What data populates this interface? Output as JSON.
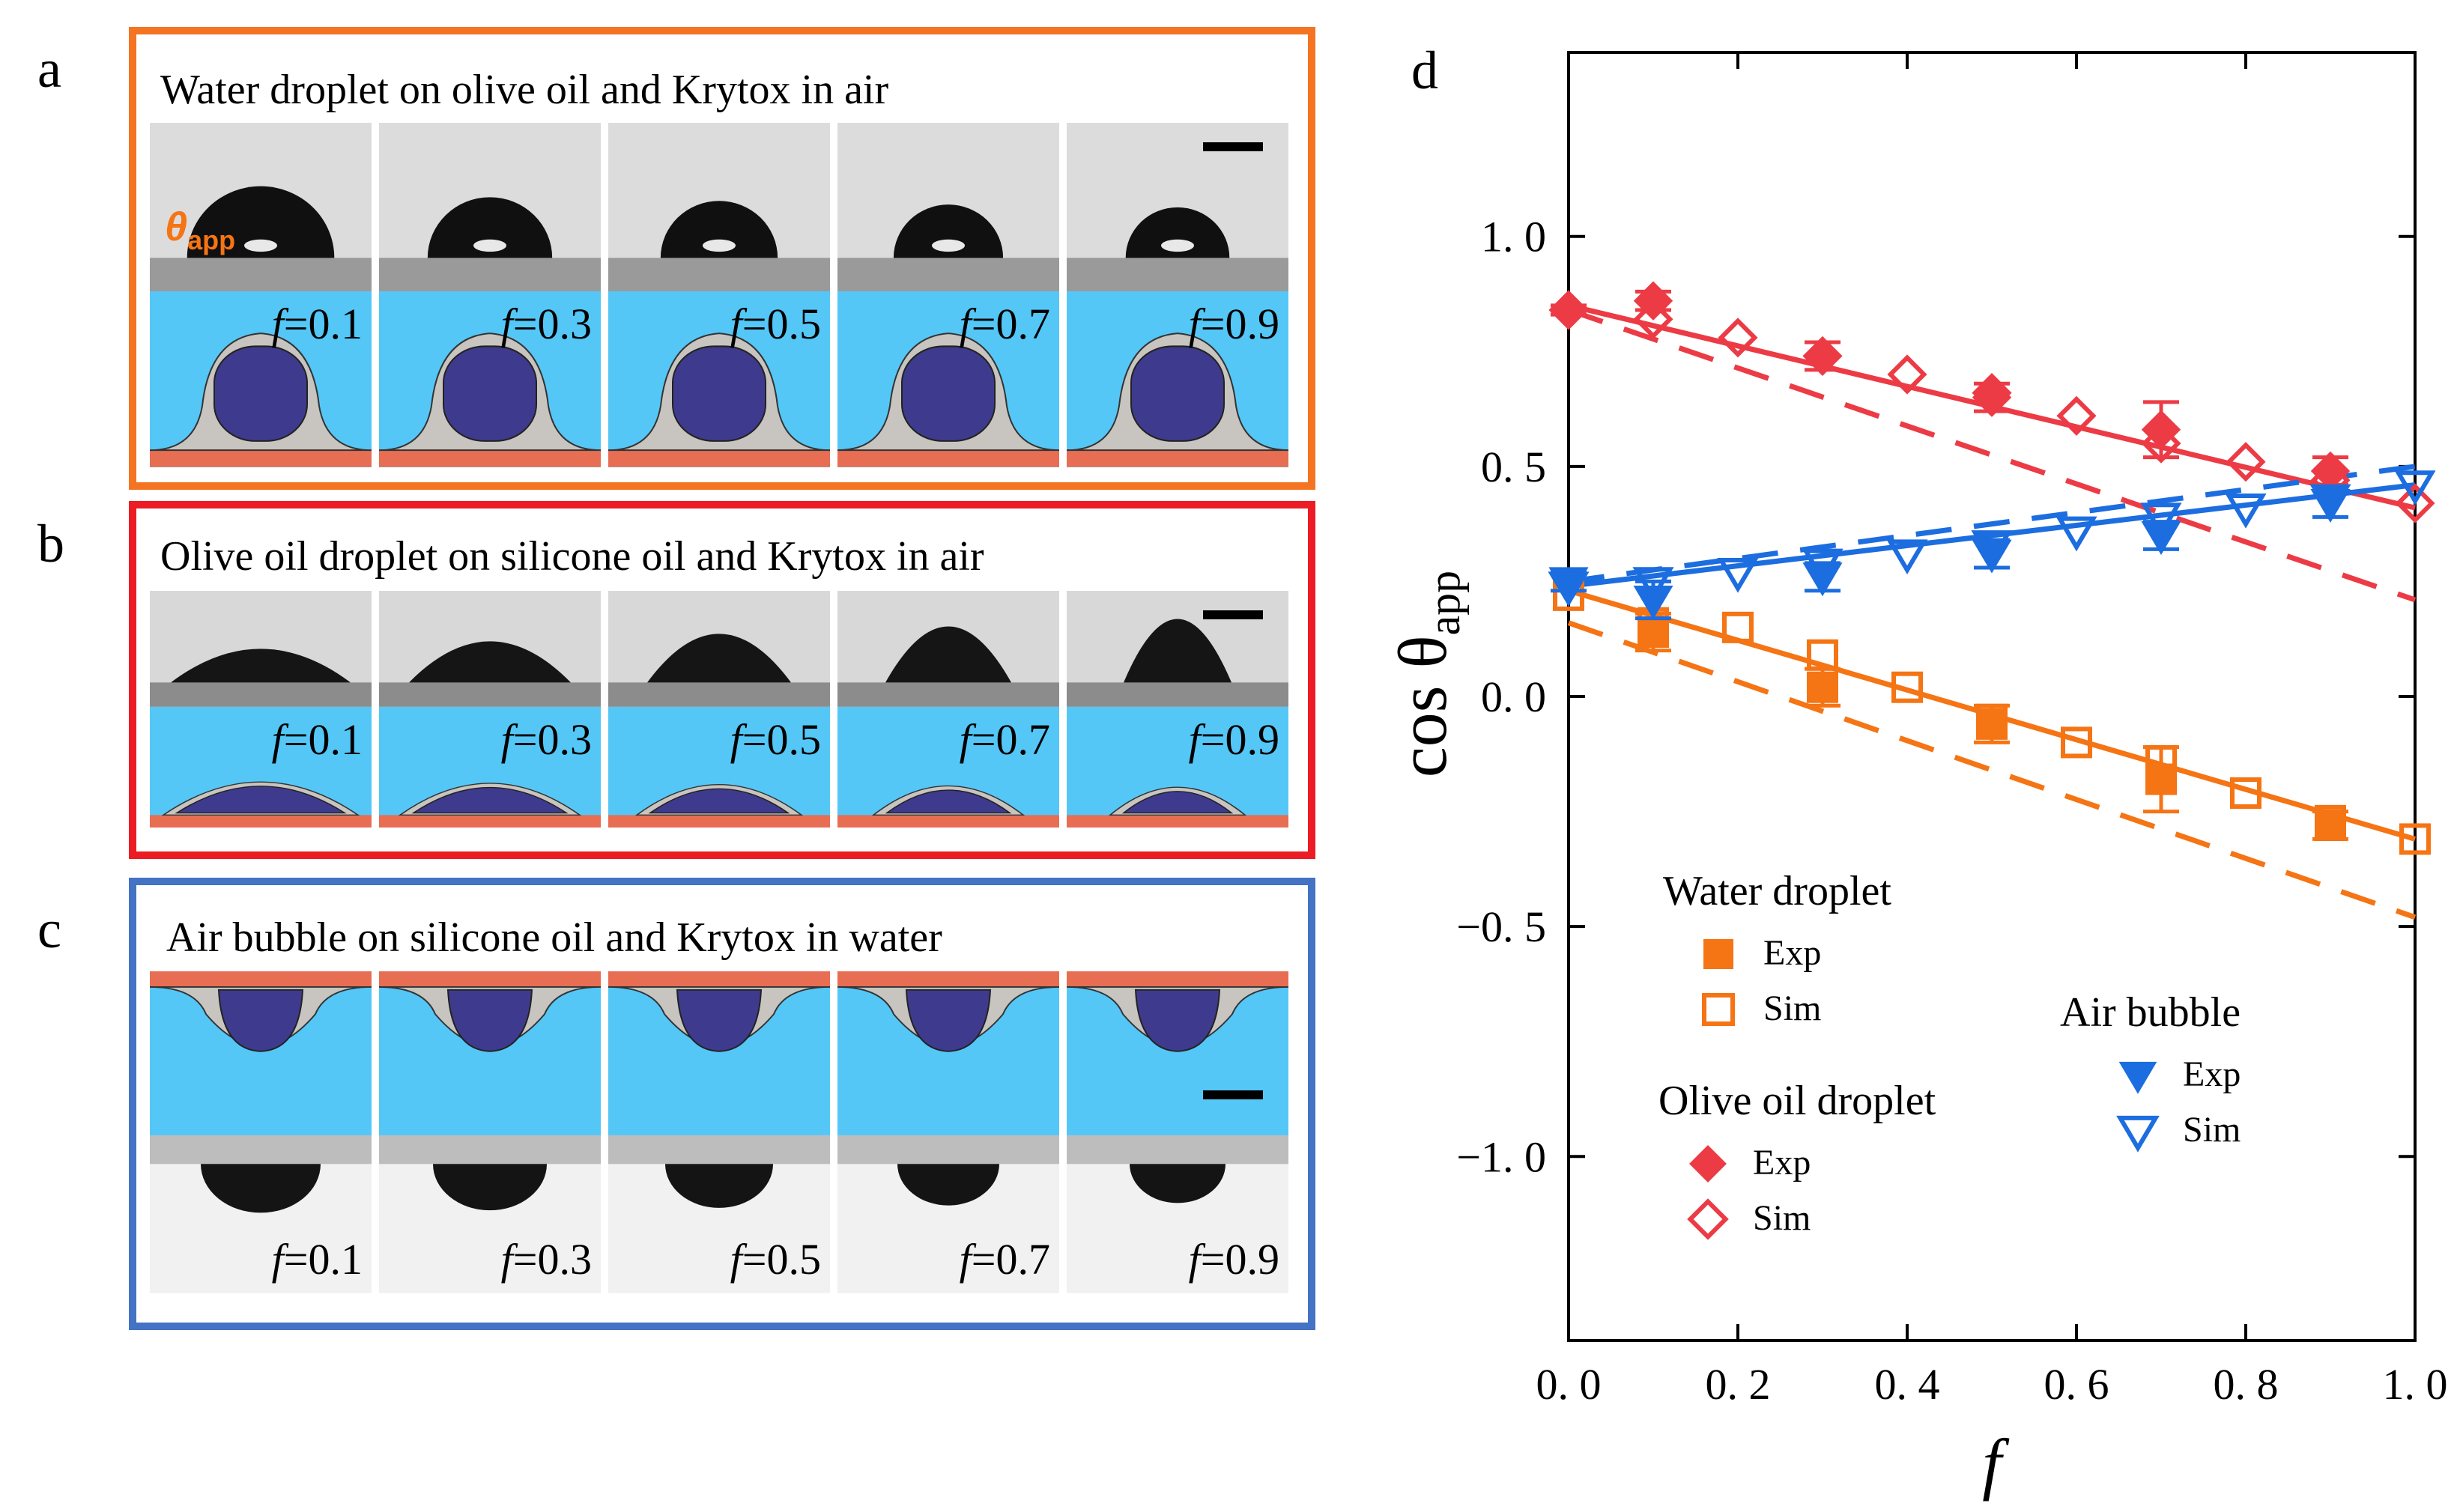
{
  "panels": {
    "a": {
      "label": "a",
      "title": "Water droplet on olive oil and Krytox in air",
      "border_color": "#f47421"
    },
    "b": {
      "label": "b",
      "title": "Olive oil droplet on silicone oil and Krytox in air",
      "border_color": "#ec1c24"
    },
    "c": {
      "label": "c",
      "title": "Air bubble on silicone oil and Krytox in water",
      "border_color": "#4472c4"
    }
  },
  "inset_symbol": "θ",
  "inset_subscript": "app",
  "f_symbol": "f",
  "frames": [
    "=0.1",
    "=0.3",
    "=0.5",
    "=0.7",
    "=0.9"
  ],
  "colors": {
    "water_droplet": "#f57414",
    "olive_oil": "#ec3b45",
    "air_bubble": "#1c6ddf",
    "schematic_bg": "#54c7f7",
    "schematic_fluid": "#e86e53",
    "schematic_core": "#3e3b8e"
  },
  "chart_data": {
    "type": "scatter",
    "panel_label": "d",
    "xlabel": "f",
    "ylabel": "cos θ",
    "ylabel_sub": "app",
    "xlim": [
      0.0,
      1.0
    ],
    "ylim": [
      -1.4,
      1.4
    ],
    "xticks": [
      0.0,
      0.2,
      0.4,
      0.6,
      0.8,
      1.0
    ],
    "xtick_labels": [
      "0. 0",
      "0. 2",
      "0. 4",
      "0. 6",
      "0. 8",
      "1. 0"
    ],
    "yticks": [
      1.0,
      0.5,
      0.0,
      -0.5,
      -1.0
    ],
    "ytick_labels": [
      "1. 0",
      "0. 5",
      "0. 0",
      "−0. 5",
      "−1. 0"
    ],
    "series": [
      {
        "group": "Water droplet",
        "name": "Exp",
        "color": "#f57414",
        "marker": "square-filled",
        "x": [
          0.1,
          0.3,
          0.5,
          0.7,
          0.9
        ],
        "y": [
          0.14,
          0.02,
          -0.06,
          -0.18,
          -0.28
        ],
        "err": [
          0.04,
          0.04,
          0.04,
          0.07,
          0.03
        ]
      },
      {
        "group": "Water droplet",
        "name": "Sim",
        "color": "#f57414",
        "marker": "square-open",
        "x": [
          0.0,
          0.1,
          0.2,
          0.3,
          0.4,
          0.5,
          0.6,
          0.7,
          0.8,
          0.9,
          1.0
        ],
        "y": [
          0.22,
          0.16,
          0.15,
          0.09,
          0.02,
          -0.05,
          -0.1,
          -0.14,
          -0.21,
          -0.27,
          -0.31
        ]
      },
      {
        "group": "Olive oil droplet",
        "name": "Exp",
        "color": "#ec3b45",
        "marker": "diamond-filled",
        "x": [
          0.0,
          0.1,
          0.3,
          0.5,
          0.7,
          0.9
        ],
        "y": [
          0.84,
          0.86,
          0.74,
          0.65,
          0.58,
          0.49
        ],
        "err": [
          0.01,
          0.02,
          0.03,
          0.03,
          0.06,
          0.03
        ]
      },
      {
        "group": "Olive oil droplet",
        "name": "Sim",
        "color": "#ec3b45",
        "marker": "diamond-open",
        "x": [
          0.0,
          0.1,
          0.2,
          0.3,
          0.4,
          0.5,
          0.6,
          0.7,
          0.8,
          0.9,
          1.0
        ],
        "y": [
          0.84,
          0.82,
          0.78,
          0.74,
          0.7,
          0.66,
          0.61,
          0.55,
          0.51,
          0.47,
          0.42
        ]
      },
      {
        "group": "Air bubble",
        "name": "Exp",
        "color": "#1c6ddf",
        "marker": "triangle-down-filled",
        "x": [
          0.0,
          0.1,
          0.3,
          0.5,
          0.7,
          0.9
        ],
        "y": [
          0.25,
          0.21,
          0.26,
          0.31,
          0.35,
          0.42
        ],
        "err": [
          0.02,
          0.04,
          0.03,
          0.03,
          0.03,
          0.03
        ]
      },
      {
        "group": "Air bubble",
        "name": "Sim",
        "color": "#1c6ddf",
        "marker": "triangle-down-open",
        "x": [
          0.0,
          0.1,
          0.2,
          0.3,
          0.4,
          0.5,
          0.6,
          0.7,
          0.8,
          0.9,
          1.0
        ],
        "y": [
          0.24,
          0.25,
          0.27,
          0.29,
          0.31,
          0.33,
          0.36,
          0.39,
          0.41,
          0.43,
          0.46
        ]
      }
    ],
    "fits": [
      {
        "color": "#f57414",
        "style": "solid",
        "x": [
          0.0,
          1.0
        ],
        "y": [
          0.23,
          -0.31
        ]
      },
      {
        "color": "#f57414",
        "style": "dashed",
        "x": [
          0.0,
          1.0
        ],
        "y": [
          0.16,
          -0.48
        ]
      },
      {
        "color": "#ec3b45",
        "style": "solid",
        "x": [
          0.0,
          1.0
        ],
        "y": [
          0.85,
          0.41
        ]
      },
      {
        "color": "#ec3b45",
        "style": "dashed",
        "x": [
          0.0,
          1.0
        ],
        "y": [
          0.84,
          0.21
        ]
      },
      {
        "color": "#1c6ddf",
        "style": "solid",
        "x": [
          0.0,
          1.0
        ],
        "y": [
          0.24,
          0.46
        ]
      },
      {
        "color": "#1c6ddf",
        "style": "dashed",
        "x": [
          0.0,
          1.0
        ],
        "y": [
          0.25,
          0.5
        ]
      }
    ],
    "legend": {
      "water": {
        "title": "Water droplet",
        "exp": "Exp",
        "sim": "Sim"
      },
      "olive": {
        "title": "Olive oil droplet",
        "exp": "Exp",
        "sim": "Sim"
      },
      "air": {
        "title": "Air bubble",
        "exp": "Exp",
        "sim": "Sim"
      }
    }
  }
}
